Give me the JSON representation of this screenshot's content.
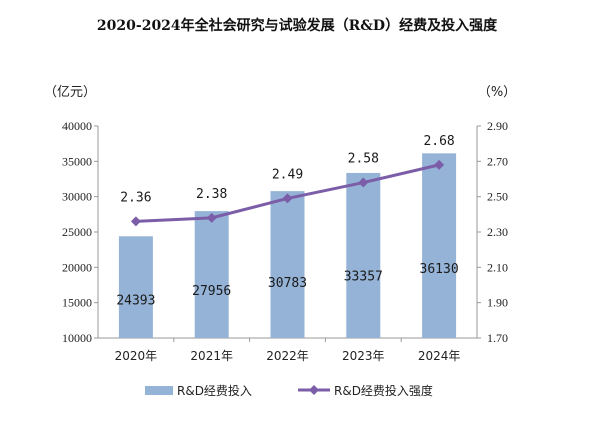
{
  "chart_data": {
    "type": "bar",
    "title": "2020-2024年全社会研究与试验发展（R&D）经费及投入强度",
    "categories": [
      "2020年",
      "2021年",
      "2022年",
      "2023年",
      "2024年"
    ],
    "series": [
      {
        "name": "R&D经费投入",
        "type": "bar",
        "axis": "left",
        "values": [
          24393,
          27956,
          30783,
          33357,
          36130
        ],
        "color": "#95b3d7"
      },
      {
        "name": "R&D经费投入强度",
        "type": "line",
        "axis": "right",
        "values": [
          2.36,
          2.38,
          2.49,
          2.58,
          2.68
        ],
        "color": "#7b5ea7"
      }
    ],
    "y_left": {
      "unit": "（亿元）",
      "ylim": [
        10000,
        40000
      ],
      "ticks": [
        "10000",
        "15000",
        "20000",
        "25000",
        "30000",
        "35000",
        "40000"
      ]
    },
    "y_right": {
      "unit": "（%）",
      "ylim": [
        1.7,
        2.9
      ],
      "ticks": [
        "1.70",
        "1.90",
        "2.10",
        "2.30",
        "2.50",
        "2.70",
        "2.90"
      ]
    },
    "legend": "bottom",
    "grid": false
  }
}
